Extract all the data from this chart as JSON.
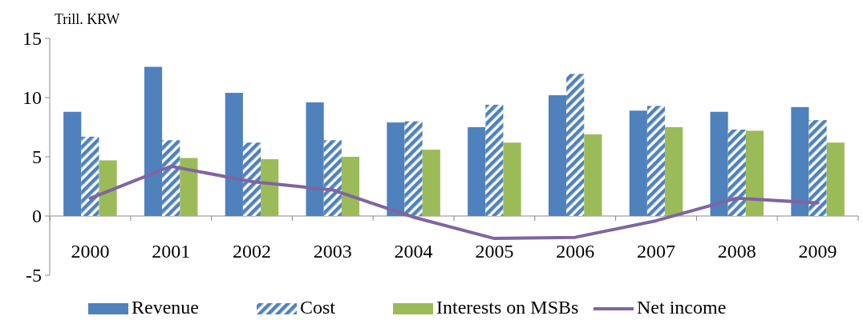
{
  "chart_data": {
    "type": "bar",
    "ylabel": "Trill. KRW",
    "categories": [
      "2000",
      "2001",
      "2002",
      "2003",
      "2004",
      "2005",
      "2006",
      "2007",
      "2008",
      "2009"
    ],
    "series": [
      {
        "name": "Revenue",
        "color": "#4f81bd",
        "values": [
          8.8,
          12.6,
          10.4,
          9.6,
          7.9,
          7.5,
          10.2,
          8.9,
          8.8,
          9.2
        ]
      },
      {
        "name": "Cost",
        "color": "#4f81bd",
        "values": [
          6.7,
          6.4,
          6.2,
          6.4,
          8.0,
          9.4,
          12.0,
          9.3,
          7.3,
          8.1
        ]
      },
      {
        "name": "Interests on MSBs",
        "color": "#9bbb59",
        "values": [
          4.7,
          4.9,
          4.8,
          5.0,
          5.6,
          6.2,
          6.9,
          7.5,
          7.2,
          6.2
        ]
      },
      {
        "name": "Net income",
        "type": "line",
        "color": "#8064a2",
        "values": [
          1.5,
          4.2,
          2.9,
          2.2,
          -0.1,
          -1.9,
          -1.8,
          -0.4,
          1.5,
          1.1
        ]
      }
    ],
    "ylim": [
      -5,
      15
    ],
    "yticks": [
      -5,
      0,
      5,
      10,
      15
    ],
    "grid": false,
    "legend": "bottom"
  }
}
